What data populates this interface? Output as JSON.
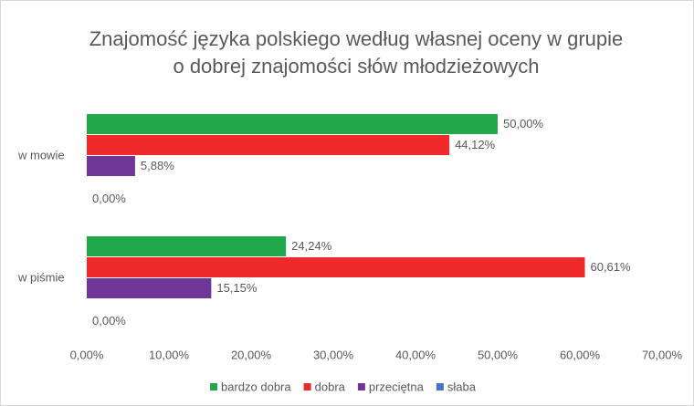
{
  "chart_data": {
    "type": "hbar",
    "title": [
      "Znajomość języka polskiego według własnej oceny w grupie",
      "o dobrej znajomości słów młodzieżowych"
    ],
    "categories": [
      "w mowie",
      "w piśmie"
    ],
    "series": [
      {
        "name": "bardzo dobra",
        "color": "#21a84a",
        "values": [
          50,
          24.24
        ],
        "value_labels": [
          "50,00%",
          "24,24%"
        ]
      },
      {
        "name": "dobra",
        "color": "#ee2a2a",
        "values": [
          44.12,
          60.61
        ],
        "value_labels": [
          "44,12%",
          "60,61%"
        ]
      },
      {
        "name": "przeciętna",
        "color": "#6f3597",
        "values": [
          5.88,
          15.15
        ],
        "value_labels": [
          "5,88%",
          "15,15%"
        ]
      },
      {
        "name": "słaba",
        "color": "#4472c4",
        "values": [
          0,
          0
        ],
        "value_labels": [
          "0,00%",
          "0,00%"
        ]
      }
    ],
    "xlim": [
      0,
      70
    ],
    "xticks": [
      {
        "value": 0,
        "label": "0,00%"
      },
      {
        "value": 10,
        "label": "10,00%"
      },
      {
        "value": 20,
        "label": "20,00%"
      },
      {
        "value": 30,
        "label": "30,00%"
      },
      {
        "value": 40,
        "label": "40,00%"
      },
      {
        "value": 50,
        "label": "50,00%"
      },
      {
        "value": 60,
        "label": "60,00%"
      },
      {
        "value": 70,
        "label": "70,00%"
      }
    ],
    "grid": false,
    "legend": "bottom"
  }
}
